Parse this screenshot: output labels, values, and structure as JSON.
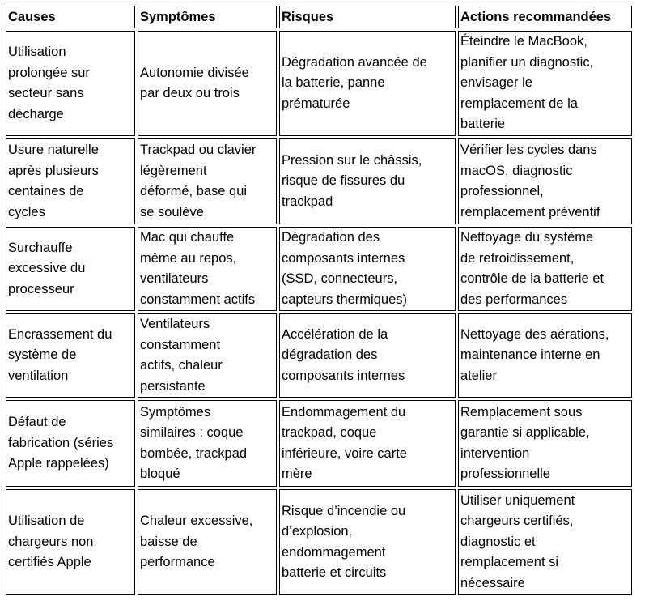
{
  "headers": [
    "Causes",
    "Symptômes",
    "Risques",
    "Actions recommandées"
  ],
  "rows": [
    [
      "Utilisation\nprolongée sur\nsecteur sans\ndécharge",
      "Autonomie divisée\npar deux ou trois",
      "Dégradation avancée de\nla batterie, panne\nprématurée",
      "Éteindre le MacBook,\nplanifier un diagnostic,\nenvisager le\nremplacement de la\nbatterie"
    ],
    [
      "Usure naturelle\naprès plusieurs\ncentaines de\ncycles",
      "Trackpad ou clavier\nlégèrement\ndéformé, base qui\nse soulève",
      "Pression sur le châssis,\nrisque de fissures du\ntrackpad",
      "Vérifier les cycles dans\nmacOS, diagnostic\nprofessionnel,\nremplacement préventif"
    ],
    [
      "Surchauffe\nexcessive du\nprocesseur",
      "Mac qui chauffe\nmême au repos,\nventilateurs\nconstamment actifs",
      "Dégradation des\ncomposants internes\n(SSD, connecteurs,\ncapteurs thermiques)",
      "Nettoyage du système\nde refroidissement,\ncontrôle de la batterie et\ndes performances"
    ],
    [
      "Encrassement du\nsystème de\nventilation",
      "Ventilateurs\nconstamment\nactifs, chaleur\npersistante",
      "Accélération de la\ndégradation des\ncomposants internes",
      "Nettoyage des aérations,\nmaintenance interne en\natelier"
    ],
    [
      "Défaut de\nfabrication (séries\nApple rappelées)",
      "Symptômes\nsimilaires : coque\nbombée, trackpad\nbloqué",
      "Endommagement du\ntrackpad, coque\ninférieure, voire carte\nmère",
      "Remplacement sous\ngarantie si applicable,\nintervention\nprofessionnelle"
    ],
    [
      "Utilisation de\nchargeurs non\ncertifiés Apple",
      "Chaleur excessive,\nbaisse de\nperformance",
      "Risque d’incendie ou\nd’explosion,\nendommagement\nbatterie et circuits",
      "Utiliser uniquement\nchargeurs certifiés,\ndiagnostic et\nremplacement si\nnécessaire"
    ]
  ]
}
